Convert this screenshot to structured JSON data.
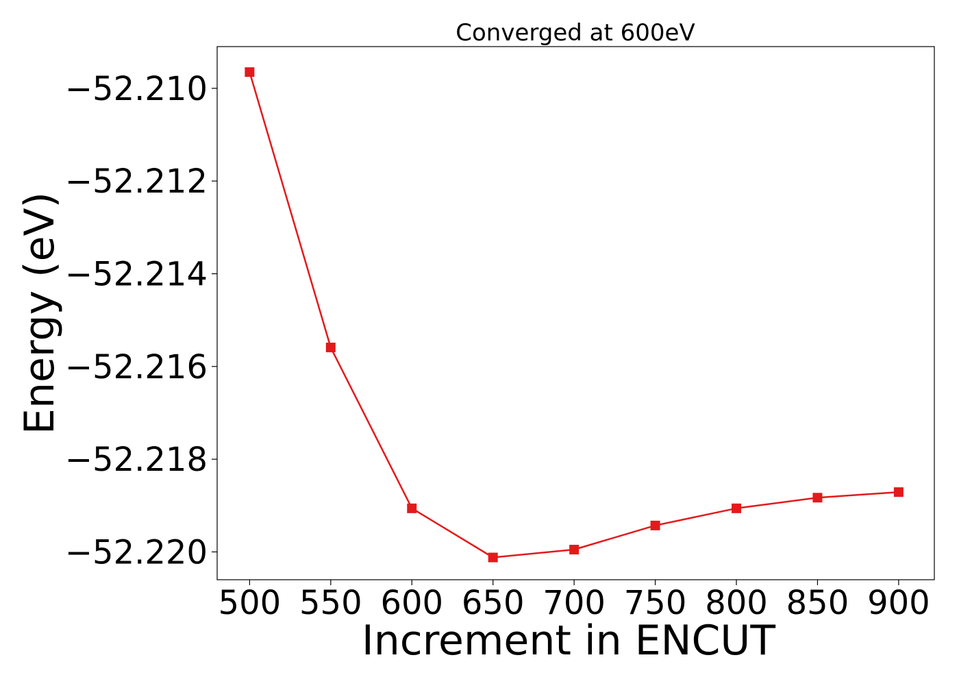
{
  "chart_data": {
    "type": "line",
    "title": "Converged at 600eV",
    "xlabel": "Increment in ENCUT",
    "ylabel": "Energy (eV)",
    "x": [
      500,
      550,
      600,
      650,
      700,
      750,
      800,
      850,
      900
    ],
    "series": [
      {
        "values": [
          -52.20965,
          -52.21559,
          -52.21906,
          -52.22012,
          -52.21995,
          -52.21943,
          -52.21906,
          -52.21883,
          -52.21871
        ],
        "color": "#e31a1c",
        "marker": "square"
      }
    ],
    "xticks": [
      "500",
      "550",
      "600",
      "650",
      "700",
      "750",
      "800",
      "850",
      "900"
    ],
    "yticks": [
      {
        "value": -52.21,
        "label": "−52.210"
      },
      {
        "value": -52.212,
        "label": "−52.212"
      },
      {
        "value": -52.214,
        "label": "−52.214"
      },
      {
        "value": -52.216,
        "label": "−52.216"
      },
      {
        "value": -52.218,
        "label": "−52.218"
      },
      {
        "value": -52.22,
        "label": "−52.220"
      }
    ],
    "xlim": [
      480,
      922
    ],
    "ylim": [
      -52.2206,
      -52.2091
    ],
    "grid": false,
    "legend": "none"
  }
}
